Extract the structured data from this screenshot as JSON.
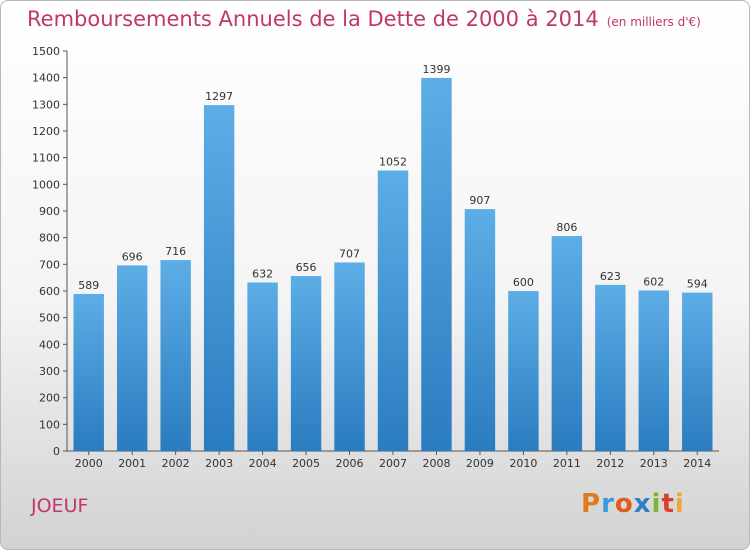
{
  "header": {
    "title": "Remboursements Annuels de la Dette de 2000 à 2014",
    "unit": "(en milliers d'€)"
  },
  "footer": {
    "city": "JOEUF",
    "logo_letters": [
      "P",
      "r",
      "o",
      "x",
      "i",
      "t",
      "i"
    ]
  },
  "colors": {
    "accent": "#c0366d",
    "bar_top": "#5dade6",
    "bar_bottom": "#2a7cc0"
  },
  "chart_data": {
    "type": "bar",
    "categories": [
      "2000",
      "2001",
      "2002",
      "2003",
      "2004",
      "2005",
      "2006",
      "2007",
      "2008",
      "2009",
      "2010",
      "2011",
      "2012",
      "2013",
      "2014"
    ],
    "values": [
      589,
      696,
      716,
      1297,
      632,
      656,
      707,
      1052,
      1399,
      907,
      600,
      806,
      623,
      602,
      594
    ],
    "title": "Remboursements Annuels de la Dette de 2000 à 2014",
    "xlabel": "",
    "ylabel": "",
    "ylim": [
      0,
      1500
    ],
    "yticks": [
      0,
      100,
      200,
      300,
      400,
      500,
      600,
      700,
      800,
      900,
      1000,
      1100,
      1200,
      1300,
      1400,
      1500
    ],
    "grid": false,
    "legend": "none"
  }
}
